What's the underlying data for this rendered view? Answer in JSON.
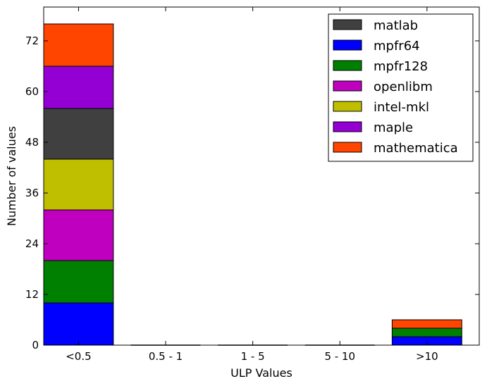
{
  "chart_data": {
    "type": "bar",
    "stacked": true,
    "xlabel": "ULP Values",
    "ylabel": "Number of values",
    "categories": [
      "<0.5",
      "0.5 - 1",
      "1 - 5",
      "5 - 10",
      ">10"
    ],
    "ylim": [
      0,
      80
    ],
    "yticks": [
      0,
      12,
      24,
      36,
      48,
      60,
      72
    ],
    "legend_position": "top-right",
    "series": [
      {
        "name": "mpfr64",
        "color": "#0000ff",
        "values": [
          10,
          0,
          0,
          0,
          2
        ]
      },
      {
        "name": "mpfr128",
        "color": "#008000",
        "values": [
          10,
          0,
          0,
          0,
          2
        ]
      },
      {
        "name": "openlibm",
        "color": "#bf00bf",
        "values": [
          12,
          0,
          0,
          0,
          0
        ]
      },
      {
        "name": "intel-mkl",
        "color": "#bfbf00",
        "values": [
          12,
          0,
          0,
          0,
          0
        ]
      },
      {
        "name": "matlab",
        "color": "#404040",
        "values": [
          12,
          0,
          0,
          0,
          0
        ]
      },
      {
        "name": "maple",
        "color": "#9400d3",
        "values": [
          10,
          0,
          0,
          0,
          0
        ]
      },
      {
        "name": "mathematica",
        "color": "#ff4500",
        "values": [
          10,
          0,
          0,
          0,
          2
        ]
      }
    ],
    "legend_order": [
      "matlab",
      "mpfr64",
      "mpfr128",
      "openlibm",
      "intel-mkl",
      "maple",
      "mathematica"
    ]
  }
}
